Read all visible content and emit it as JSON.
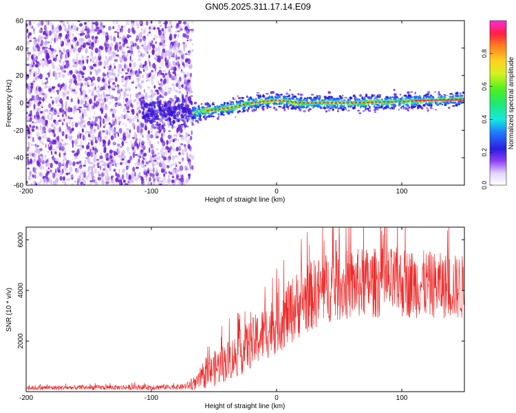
{
  "title": "GN05.2025.311.17.14.E09",
  "colors": {
    "snr_line": "#ee2a2a",
    "scatter_noise": "#6b1fd6",
    "scatter_noise_light": "#c9a8f2",
    "axis": "#000000"
  },
  "chart_data": [
    {
      "type": "heatmap",
      "name": "spectrogram",
      "xlabel": "Height of straight line (km)",
      "ylabel": "Frequency (Hz)",
      "xlim": [
        -200,
        150
      ],
      "ylim": [
        -60,
        60
      ],
      "xticks": [
        -200,
        -100,
        0,
        100
      ],
      "yticks": [
        -60,
        -40,
        -20,
        0,
        20,
        40,
        60
      ],
      "colorbar": {
        "label": "Normalized spectral amplitude",
        "range": [
          0,
          1
        ],
        "ticks": [
          0.0,
          0.2,
          0.4,
          0.6,
          0.8
        ]
      },
      "features": {
        "noise_region_x": [
          -200,
          -67
        ],
        "signal_start_x": -67,
        "signal_ridge": {
          "x": [
            -67,
            -40,
            -20,
            0,
            20,
            60,
            100,
            150
          ],
          "y": [
            -7,
            -4,
            0,
            2,
            0,
            0,
            1,
            3
          ]
        }
      }
    },
    {
      "type": "line",
      "name": "snr",
      "xlabel": "Height of straight line (km)",
      "ylabel": "SNR (10 * v/v)",
      "xlim": [
        -200,
        150
      ],
      "ylim": [
        0,
        6500
      ],
      "xticks": [
        -200,
        -100,
        0,
        100
      ],
      "yticks": [
        2000,
        4000,
        6000
      ],
      "envelope": {
        "x": [
          -200,
          -120,
          -75,
          -65,
          -50,
          -30,
          -10,
          0,
          10,
          20,
          40,
          70,
          100,
          130,
          150
        ],
        "mean": [
          150,
          170,
          190,
          300,
          900,
          1500,
          2300,
          2700,
          3100,
          3600,
          4100,
          4300,
          4300,
          4200,
          4100
        ],
        "spread": [
          90,
          100,
          110,
          250,
          700,
          900,
          1100,
          1200,
          1300,
          1400,
          1400,
          1400,
          1400,
          1300,
          1300
        ]
      }
    }
  ]
}
